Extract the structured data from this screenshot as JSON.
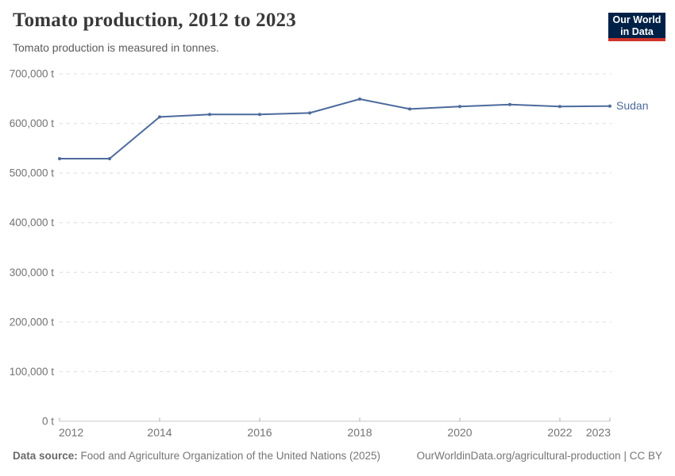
{
  "header": {
    "title": "Tomato production, 2012 to 2023",
    "subtitle": "Tomato production is measured in tonnes.",
    "logo": {
      "line1": "Our World",
      "line2": "in Data",
      "background_color": "#002147",
      "accent_color": "#d0342c"
    }
  },
  "chart_data": {
    "type": "line",
    "title": "Tomato production, 2012 to 2023",
    "unit_suffix": " t",
    "x": [
      2012,
      2013,
      2014,
      2015,
      2016,
      2017,
      2018,
      2019,
      2020,
      2021,
      2022,
      2023
    ],
    "series": [
      {
        "name": "Sudan",
        "color": "#4c6a9c",
        "values": [
          529000,
          529000,
          613000,
          618000,
          618000,
          621000,
          649000,
          629000,
          634000,
          638000,
          634000,
          635000
        ]
      }
    ],
    "ylim": [
      0,
      700000
    ],
    "ytick_interval": 100000,
    "xticks": [
      2012,
      2014,
      2016,
      2018,
      2020,
      2022,
      2023
    ],
    "grid": true,
    "gridline_style": "dashed",
    "legend_position": "end-of-line",
    "axis_text_color": "#737373",
    "gridline_color": "#dcdcdc",
    "axis_line_color": "#c8c8c8"
  },
  "footer": {
    "datasource_label": "Data source:",
    "datasource": "Food and Agriculture Organization of the United Nations (2025)",
    "url": "OurWorldinData.org/agricultural-production",
    "separator": "|",
    "license": "CC BY"
  }
}
